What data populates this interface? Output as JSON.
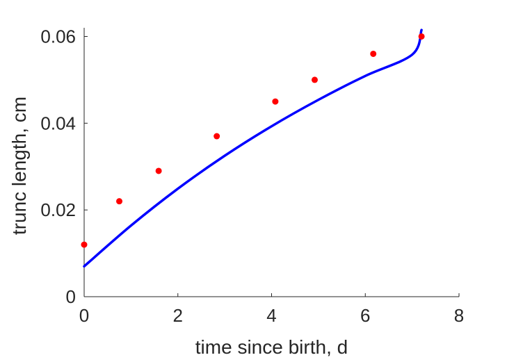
{
  "chart_data": {
    "type": "scatter",
    "title": "",
    "xlabel": "time since birth, d",
    "ylabel": "trunc length, cm",
    "xlim": [
      0,
      8
    ],
    "ylim": [
      0,
      0.062
    ],
    "xticks": [
      0,
      2,
      4,
      6,
      8
    ],
    "xtick_labels": [
      "0",
      "2",
      "4",
      "6",
      "8"
    ],
    "yticks": [
      0,
      0.02,
      0.04,
      0.06
    ],
    "ytick_labels": [
      "0",
      "0.02",
      "0.04",
      "0.06"
    ],
    "grid": false,
    "box": false,
    "series": [
      {
        "type": "scatter",
        "color": "#ff0000",
        "x": [
          0,
          0.75,
          1.59,
          2.83,
          4.08,
          4.92,
          6.17,
          7.2
        ],
        "y": [
          0.012,
          0.022,
          0.029,
          0.037,
          0.045,
          0.05,
          0.056,
          0.06
        ]
      },
      {
        "type": "line",
        "color": "#0000ff",
        "x": [
          0,
          1,
          2,
          3,
          4,
          5,
          6,
          7,
          7.2
        ],
        "y": [
          0.007,
          0.0164,
          0.0249,
          0.0325,
          0.0393,
          0.0454,
          0.0509,
          0.0558,
          0.0615
        ]
      }
    ]
  }
}
